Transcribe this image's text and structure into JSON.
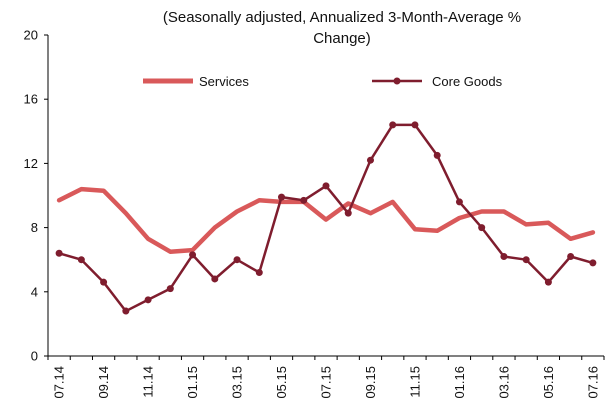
{
  "chart_data": {
    "type": "line",
    "title_lines": [
      "(Seasonally adjusted, Annualized 3-Month-Average %",
      "Change)"
    ],
    "xlabel": "",
    "ylabel": "",
    "ylim": [
      0,
      20
    ],
    "yticks": [
      0,
      4,
      8,
      12,
      16,
      20
    ],
    "grid": false,
    "legend": "top",
    "x": [
      "07.14",
      "08.14",
      "09.14",
      "10.14",
      "11.14",
      "12.14",
      "01.15",
      "02.15",
      "03.15",
      "04.15",
      "05.15",
      "06.15",
      "07.15",
      "08.15",
      "09.15",
      "10.15",
      "11.15",
      "12.15",
      "01.16",
      "02.16",
      "03.16",
      "04.16",
      "05.16",
      "06.16",
      "07.16"
    ],
    "xtick_labels": [
      "07.14",
      "09.14",
      "11.14",
      "01.15",
      "03.15",
      "05.15",
      "07.15",
      "09.15",
      "11.15",
      "01.16",
      "03.16",
      "05.16",
      "07.16"
    ],
    "series": [
      {
        "name": "Services",
        "color": "#d9595a",
        "values": [
          9.7,
          10.4,
          10.3,
          8.9,
          7.3,
          6.5,
          6.6,
          8.0,
          9.0,
          9.7,
          9.6,
          9.6,
          8.5,
          9.5,
          8.9,
          9.6,
          7.9,
          7.8,
          8.6,
          9.0,
          9.0,
          8.2,
          8.3,
          7.3,
          7.7
        ]
      },
      {
        "name": "Core Goods",
        "color": "#7f1d2e",
        "values": [
          6.4,
          6.0,
          4.6,
          2.8,
          3.5,
          4.2,
          6.3,
          4.8,
          6.0,
          5.2,
          9.9,
          9.7,
          10.6,
          8.9,
          12.2,
          14.4,
          14.4,
          12.5,
          9.6,
          8.0,
          6.2,
          6.0,
          4.6,
          6.2,
          5.8
        ]
      }
    ]
  }
}
